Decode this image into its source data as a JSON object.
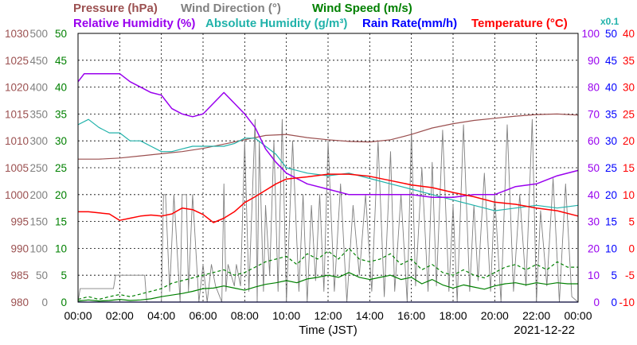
{
  "chart_data": {
    "type": "line",
    "date": "2021-12-22",
    "xlabel": "Time (JST)",
    "x_ticks": [
      "00:00",
      "02:00",
      "04:00",
      "06:00",
      "08:00",
      "10:00",
      "12:00",
      "14:00",
      "16:00",
      "18:00",
      "20:00",
      "22:00",
      "00:00"
    ],
    "x_range_hours": [
      0,
      24
    ],
    "grid": true,
    "axes": {
      "pressure": {
        "label": "Pressure (hPa)",
        "color": "#9b5050",
        "min": 980,
        "max": 1030,
        "ticks": [
          "980",
          "985",
          "990",
          "995",
          "1000",
          "1005",
          "1010",
          "1015",
          "1020",
          "1025",
          "1030"
        ]
      },
      "wind_direction": {
        "label": "Wind Direction (°)",
        "color": "#808080",
        "min": 0,
        "max": 500,
        "ticks": [
          "0",
          "50",
          "100",
          "150",
          "200",
          "250",
          "300",
          "350",
          "400",
          "450",
          "500"
        ]
      },
      "wind_speed": {
        "label": "Wind Speed (m/s)",
        "color": "#008000",
        "min": 0,
        "max": 50,
        "ticks": [
          "0",
          "5",
          "10",
          "15",
          "20",
          "25",
          "30",
          "35",
          "40",
          "45",
          "50"
        ]
      },
      "relative_humidity": {
        "label": "Relative Humidity (%)",
        "color": "#9900ee",
        "min": 0,
        "max": 100,
        "ticks": [
          "0",
          "10",
          "20",
          "30",
          "40",
          "50",
          "60",
          "70",
          "80",
          "90",
          "100"
        ]
      },
      "absolute_humidity": {
        "label": "Absolute Humidity (g/m³)",
        "unit_scale": "x0.1",
        "color": "#20b2aa",
        "min": 0,
        "max": 100
      },
      "rain_rate": {
        "label": "Rain Rate(mm/h)",
        "color": "#0000ff",
        "min": 0,
        "max": 50,
        "ticks": [
          "0",
          "5",
          "10",
          "15",
          "20",
          "25",
          "30",
          "35",
          "40",
          "45",
          "50"
        ]
      },
      "temperature": {
        "label": "Temperature (°C)",
        "color": "#ff0000",
        "min": -10,
        "max": 40,
        "ticks": [
          "-10",
          "-5",
          "0",
          "5",
          "10",
          "15",
          "20",
          "25",
          "30",
          "35",
          "40"
        ]
      }
    },
    "legend": {
      "row1": [
        "Pressure (hPa)",
        "Wind Direction (°)",
        "Wind Speed (m/s)"
      ],
      "row2": [
        "Relative Humidity (%)",
        "Absolute Humidity (g/m³)",
        "Rain Rate(mm/h)",
        "Temperature (°C)"
      ],
      "scale_note": "x0.1"
    },
    "series": [
      {
        "name": "Pressure (hPa)",
        "axis": "pressure",
        "color": "#9b5050",
        "x": [
          0,
          1,
          2,
          3,
          4,
          5,
          6,
          7,
          8,
          9,
          10,
          11,
          12,
          13,
          14,
          15,
          16,
          17,
          18,
          19,
          20,
          21,
          22,
          23,
          24
        ],
        "values": [
          1006.6,
          1006.6,
          1006.8,
          1007.2,
          1007.6,
          1008,
          1008.6,
          1009.4,
          1010.2,
          1011,
          1011.2,
          1010.6,
          1010.2,
          1009.9,
          1009.8,
          1010.2,
          1011.2,
          1012.4,
          1013.2,
          1013.8,
          1014.2,
          1014.6,
          1014.9,
          1015,
          1014.8
        ]
      },
      {
        "name": "Relative Humidity (%)",
        "axis": "relative_humidity",
        "color": "#9900ee",
        "x": [
          0,
          0.3,
          1,
          2,
          2.5,
          3,
          3.5,
          4,
          4.5,
          5,
          5.5,
          6,
          6.5,
          7,
          7.5,
          8,
          8.5,
          9,
          9.5,
          10,
          11,
          12,
          13,
          14,
          15,
          16,
          17,
          18,
          19,
          20,
          21,
          22,
          23,
          24
        ],
        "values": [
          82,
          85,
          85,
          85,
          82,
          80,
          78,
          77,
          72,
          70,
          69,
          70,
          74,
          78,
          74,
          70,
          65,
          57,
          52,
          48,
          44,
          42,
          40,
          40,
          40,
          40,
          39,
          39,
          40,
          40,
          43,
          44,
          47,
          49
        ]
      },
      {
        "name": "Absolute Humidity (g/m³)",
        "axis": "absolute_humidity",
        "color": "#20b2aa",
        "x": [
          0,
          0.5,
          1,
          1.5,
          2,
          2.5,
          3,
          3.5,
          4,
          4.5,
          5,
          5.5,
          6,
          6.5,
          7,
          7.5,
          8,
          8.5,
          9,
          9.5,
          10,
          11,
          12,
          13,
          14,
          15,
          16,
          17,
          18,
          19,
          20,
          21,
          22,
          23,
          24
        ],
        "values": [
          66,
          68,
          65,
          63,
          63,
          60,
          60,
          58,
          56,
          56,
          57,
          58,
          58,
          58,
          58,
          59,
          61,
          61,
          58,
          55,
          50,
          48,
          47,
          48,
          46,
          44,
          42,
          40,
          38,
          36,
          34,
          35,
          36,
          35,
          36
        ]
      },
      {
        "name": "Temperature (°C)",
        "axis": "temperature",
        "color": "#ff0000",
        "x": [
          0,
          0.5,
          1,
          1.5,
          2,
          2.5,
          3,
          3.5,
          4,
          4.5,
          5,
          5.5,
          6,
          6.5,
          7,
          7.5,
          8,
          8.5,
          9,
          9.5,
          10,
          11,
          12,
          13,
          14,
          15,
          16,
          17,
          18,
          19,
          20,
          21,
          22,
          23,
          24
        ],
        "values": [
          6.8,
          6.8,
          6.6,
          6.4,
          5.2,
          5.6,
          6,
          6.2,
          6,
          6.4,
          7.5,
          7.2,
          6.3,
          4.8,
          5.6,
          6.8,
          8.5,
          9.6,
          10.8,
          12,
          12.9,
          13.3,
          13.8,
          13.8,
          13.4,
          12.6,
          11.8,
          11.3,
          10.4,
          9.6,
          8.6,
          8.2,
          7.5,
          7,
          6
        ]
      },
      {
        "name": "Wind Direction (°)",
        "axis": "wind_direction",
        "color": "#808080",
        "x": [
          0,
          0.1,
          0.2,
          1.7,
          1.8,
          2.1,
          3.2,
          3.3,
          4,
          4.1,
          4.2,
          4.4,
          4.6,
          4.9,
          5,
          5.2,
          5.3,
          5.5,
          5.8,
          6,
          6.2,
          6.4,
          6.6,
          6.9,
          7,
          7.1,
          7.2,
          7.5,
          7.6,
          7.8,
          8,
          8.2,
          8.5,
          8.6,
          8.7,
          8.9,
          9,
          9.2,
          9.4,
          9.6,
          9.8,
          10,
          10.3,
          10.6,
          10.8,
          11,
          11.2,
          11.4,
          11.6,
          11.8,
          12,
          12.3,
          12.6,
          12.9,
          13.2,
          13.5,
          13.8,
          14.1,
          14.4,
          14.7,
          15,
          15.2,
          15.5,
          15.8,
          16,
          16.2,
          16.5,
          16.8,
          17,
          17.2,
          17.5,
          17.8,
          18,
          18.2,
          18.5,
          18.8,
          19,
          19.2,
          19.5,
          19.8,
          20,
          20.3,
          20.6,
          20.9,
          21.2,
          21.5,
          21.8,
          22,
          22.2,
          22.5,
          22.8,
          23.1,
          23.4,
          23.7,
          24
        ],
        "values": [
          0,
          25,
          25,
          25,
          50,
          50,
          50,
          0,
          0,
          200,
          200,
          20,
          200,
          0,
          200,
          200,
          20,
          200,
          0,
          70,
          0,
          70,
          30,
          0,
          220,
          20,
          70,
          30,
          70,
          30,
          300,
          20,
          340,
          0,
          300,
          20,
          180,
          50,
          300,
          20,
          340,
          0,
          300,
          20,
          200,
          0,
          180,
          40,
          200,
          20,
          300,
          20,
          220,
          0,
          180,
          50,
          200,
          20,
          300,
          10,
          280,
          20,
          200,
          0,
          320,
          30,
          250,
          20,
          260,
          30,
          320,
          20,
          180,
          0,
          330,
          20,
          180,
          40,
          240,
          20,
          200,
          0,
          330,
          20,
          200,
          30,
          340,
          0,
          170,
          30,
          230,
          0,
          220,
          10,
          0
        ]
      },
      {
        "name": "Wind Speed (m/s)",
        "axis": "wind_speed",
        "color": "#008000",
        "x": [
          0,
          0.5,
          1,
          1.5,
          2,
          2.5,
          3,
          3.5,
          4,
          4.5,
          5,
          5.5,
          6,
          6.5,
          7,
          7.5,
          8,
          8.5,
          9,
          9.5,
          10,
          10.5,
          11,
          11.5,
          12,
          12.5,
          13,
          13.5,
          14,
          14.5,
          15,
          15.5,
          16,
          16.5,
          17,
          17.5,
          18,
          18.5,
          19,
          19.5,
          20,
          20.5,
          21,
          21.5,
          22,
          22.5,
          23,
          23.5,
          24
        ],
        "values": [
          0.2,
          0.4,
          0.2,
          0.3,
          0.5,
          0.3,
          0.4,
          0.6,
          1,
          1.3,
          1.6,
          2,
          2.5,
          2.6,
          3,
          2.6,
          2.2,
          2.8,
          3.3,
          3.6,
          4,
          3.6,
          4.3,
          4.6,
          5,
          4.6,
          5.5,
          4.6,
          4.2,
          4.6,
          5,
          4.2,
          4.6,
          3.4,
          4.2,
          3.2,
          2.6,
          3.2,
          2.8,
          2.4,
          3,
          3.4,
          3.6,
          3.2,
          3.6,
          3.3,
          3.6,
          3.4,
          3.4
        ]
      },
      {
        "name": "Wind Speed (m/s)",
        "axis": "wind_speed",
        "color": "#008000",
        "style": "dashed",
        "x": [
          0,
          0.5,
          1,
          1.5,
          2,
          2.5,
          3,
          3.5,
          4,
          4.5,
          5,
          5.5,
          6,
          6.5,
          7,
          7.5,
          8,
          8.5,
          9,
          9.5,
          10,
          10.5,
          11,
          11.5,
          12,
          12.5,
          13,
          13.5,
          14,
          14.5,
          15,
          15.5,
          16,
          16.5,
          17,
          17.5,
          18,
          18.5,
          19,
          19.5,
          20,
          20.5,
          21,
          21.5,
          22,
          22.5,
          23,
          23.5,
          24
        ],
        "values": [
          0.5,
          1,
          0.5,
          1,
          1.4,
          1,
          1.5,
          2,
          2.5,
          3.5,
          4,
          4.5,
          5,
          5.5,
          6,
          5,
          5.5,
          6.5,
          7.5,
          8,
          8.5,
          7,
          9,
          8,
          9.5,
          8,
          10,
          8,
          7.5,
          8,
          9,
          7,
          8,
          6,
          7,
          5.5,
          5,
          6,
          5,
          4.5,
          5.5,
          6.5,
          7,
          6,
          7,
          6,
          7.5,
          6.5,
          6.5
        ]
      },
      {
        "name": "Rain Rate(mm/h)",
        "axis": "rain_rate",
        "color": "#0000ff",
        "x": [
          0,
          24
        ],
        "values": [
          0,
          0
        ]
      }
    ]
  }
}
